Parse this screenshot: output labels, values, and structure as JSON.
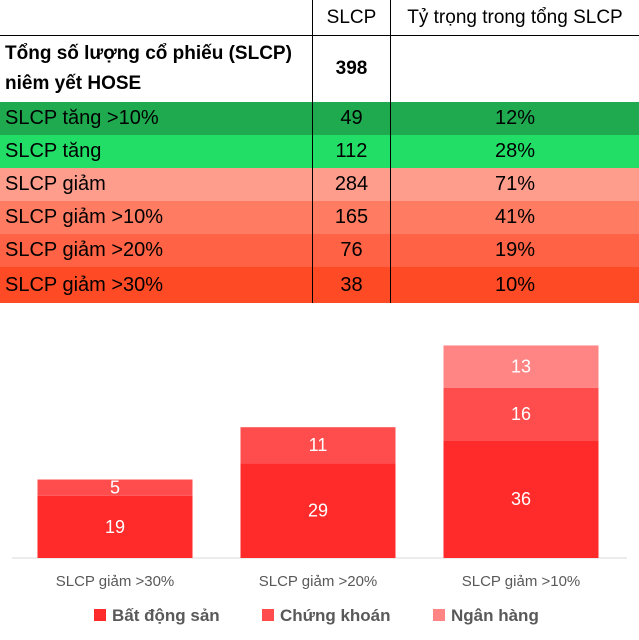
{
  "table": {
    "headers": [
      "",
      "SLCP",
      "Tỷ trọng trong tổng SLCP"
    ],
    "total": {
      "label_line1": "Tổng số lượng cổ phiếu (SLCP)",
      "label_line2": "niêm yết HOSE",
      "value": "398"
    },
    "rows": [
      {
        "label": "SLCP tăng >10%",
        "count": "49",
        "share": "12%",
        "color": "#1faa4f"
      },
      {
        "label": "SLCP tăng",
        "count": "112",
        "share": "28%",
        "color": "#22dd66"
      },
      {
        "label": "SLCP giảm",
        "count": "284",
        "share": "71%",
        "color": "#ff9d8d"
      },
      {
        "label": "SLCP giảm >10%",
        "count": "165",
        "share": "41%",
        "color": "#ff7c62"
      },
      {
        "label": "SLCP giảm >20%",
        "count": "76",
        "share": "19%",
        "color": "#ff6244"
      },
      {
        "label": "SLCP giảm >30%",
        "count": "38",
        "share": "10%",
        "color": "#ff4a26"
      }
    ]
  },
  "chart_data": {
    "type": "bar",
    "stacked": true,
    "categories": [
      "SLCP giảm >30%",
      "SLCP giảm >20%",
      "SLCP giảm >10%"
    ],
    "series": [
      {
        "name": "Bất động sản",
        "values": [
          19,
          29,
          36
        ],
        "color": "#ff2a2a"
      },
      {
        "name": "Chứng khoán",
        "values": [
          5,
          11,
          16
        ],
        "color": "#ff4d4d"
      },
      {
        "name": "Ngân hàng",
        "values": [
          0,
          0,
          13
        ],
        "color": "#ff8585"
      }
    ],
    "ylim": [
      0,
      65
    ],
    "grid": false,
    "legend": "bottom"
  }
}
